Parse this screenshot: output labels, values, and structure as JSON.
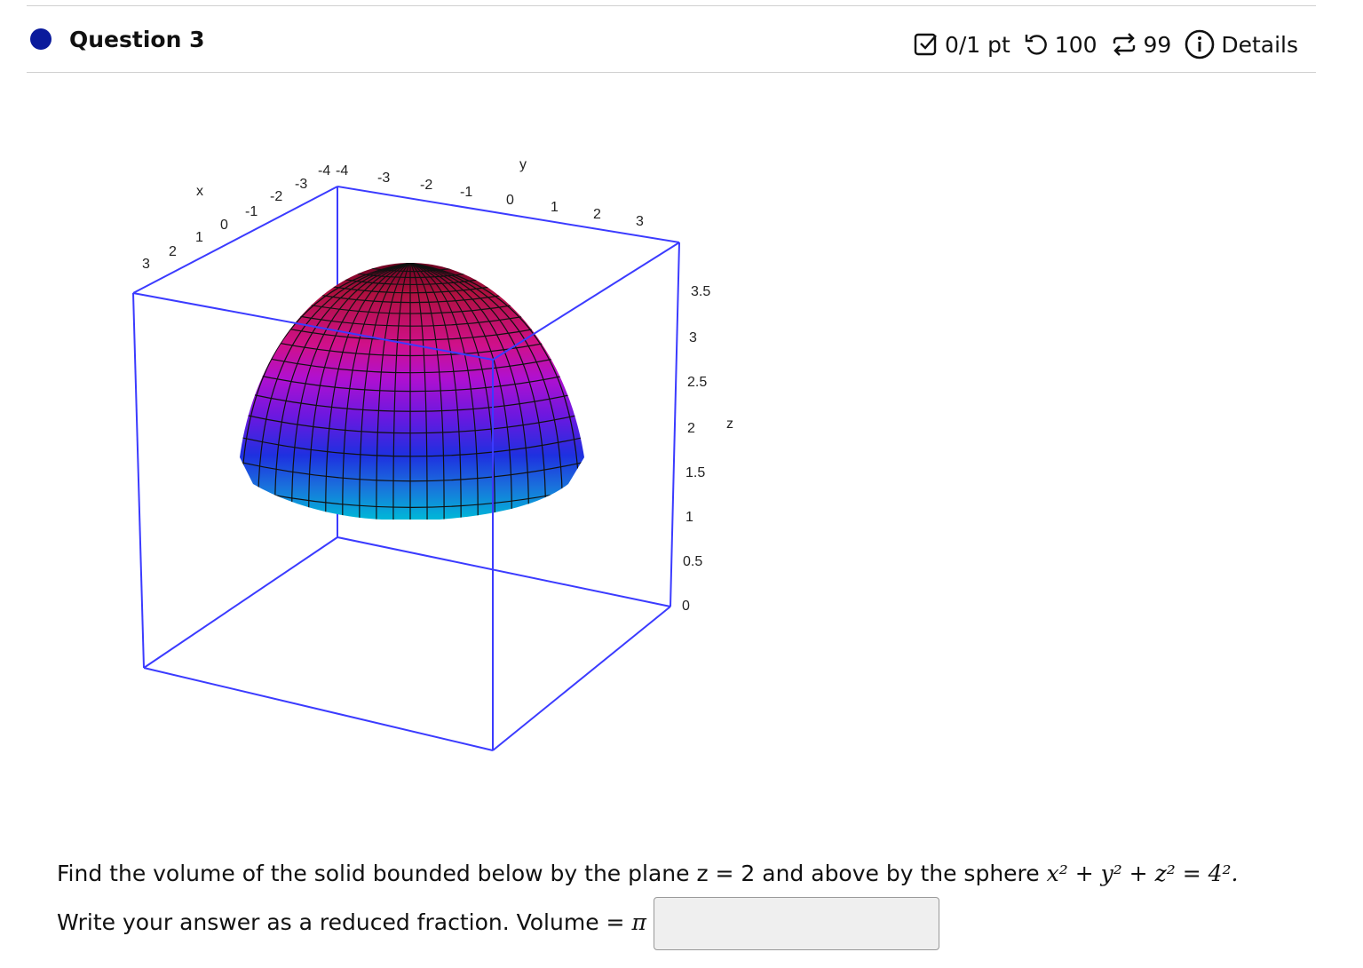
{
  "header": {
    "title": "Question 3",
    "score": "0/1 pt",
    "retries": "100",
    "attempts": "99",
    "details_label": "Details",
    "accent": "#0a1a9c"
  },
  "plot": {
    "x_label": "x",
    "y_label": "y",
    "z_label": "z",
    "x_ticks": [
      "3",
      "2",
      "1",
      "0",
      "-1",
      "-2",
      "-3",
      "-4"
    ],
    "y_ticks": [
      "-4",
      "-3",
      "-2",
      "-1",
      "0",
      "1",
      "2",
      "3"
    ],
    "z_ticks": [
      "3.5",
      "3",
      "2.5",
      "2",
      "1.5",
      "1",
      "0.5",
      "0"
    ],
    "box_color": "#3333ff"
  },
  "question": {
    "line1_text": "Find the volume of the solid bounded below by the plane z = 2 and above by the sphere",
    "equation": "x² + y² + z² = 4².",
    "line2_text": "Write your answer as a reduced fraction. Volume =",
    "pi": "π",
    "answer_value": ""
  }
}
